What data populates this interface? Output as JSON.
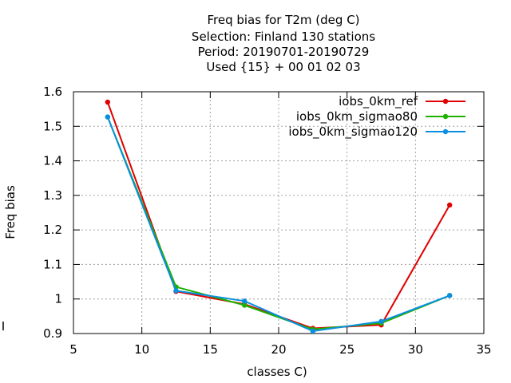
{
  "chart_data": {
    "type": "line",
    "title_lines": [
      "Freq bias  for T2m (deg C)",
      "Selection: Finland    130 stations",
      "Period: 20190701-20190729",
      "Used {15} + 00 01 02 03"
    ],
    "xlabel": "classes C)",
    "ylabel": "Freq bias",
    "xlim": [
      5,
      35
    ],
    "ylim": [
      0.9,
      1.6
    ],
    "xticks": [
      5,
      10,
      15,
      20,
      25,
      30,
      35
    ],
    "yticks": [
      0.9,
      1.0,
      1.1,
      1.2,
      1.3,
      1.4,
      1.5,
      1.6
    ],
    "ytick_labels": [
      "0.9",
      "1",
      "1.1",
      "1.2",
      "1.3",
      "1.4",
      "1.5",
      "1.6"
    ],
    "grid": true,
    "legend_position": "top-right",
    "x": [
      7.5,
      12.5,
      17.5,
      22.5,
      27.5,
      32.5
    ],
    "series": [
      {
        "name": "iobs_0km_ref",
        "color": "#e00000",
        "values": [
          1.57,
          1.022,
          0.985,
          0.915,
          0.925,
          1.272
        ]
      },
      {
        "name": "iobs_0km_sigmao80",
        "color": "#1fb000",
        "values": [
          1.527,
          1.035,
          0.982,
          0.912,
          0.93,
          1.01
        ]
      },
      {
        "name": "iobs_0km_sigmao120",
        "color": "#0a8fe0",
        "values": [
          1.527,
          1.024,
          0.994,
          0.907,
          0.935,
          1.01
        ]
      }
    ]
  }
}
